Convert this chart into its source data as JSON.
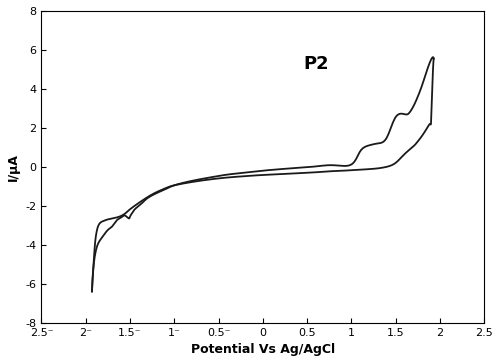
{
  "title": "P2",
  "xlabel": "Potential Vs Ag/AgCl",
  "ylabel": "I/μA",
  "xlim": [
    -2.5,
    2.5
  ],
  "ylim": [
    -8,
    8
  ],
  "xticks": [
    -2.5,
    -2,
    -1.5,
    -1,
    -0.5,
    0,
    0.5,
    1,
    1.5,
    2,
    2.5
  ],
  "yticks": [
    -8,
    -6,
    -4,
    -2,
    0,
    2,
    4,
    6,
    8
  ],
  "background_color": "#ffffff",
  "line_color": "#1a1a1a",
  "line_width": 1.3,
  "title_fontsize": 13,
  "label_fontsize": 9,
  "tick_fontsize": 8,
  "cv_forward": [
    [
      -1.93,
      -6.4
    ],
    [
      -1.91,
      -5.0
    ],
    [
      -1.88,
      -4.2
    ],
    [
      -1.85,
      -3.85
    ],
    [
      -1.82,
      -3.65
    ],
    [
      -1.78,
      -3.4
    ],
    [
      -1.74,
      -3.2
    ],
    [
      -1.7,
      -3.05
    ],
    [
      -1.65,
      -2.75
    ],
    [
      -1.6,
      -2.6
    ],
    [
      -1.57,
      -2.5
    ],
    [
      -1.55,
      -2.52
    ],
    [
      -1.53,
      -2.6
    ],
    [
      -1.51,
      -2.65
    ],
    [
      -1.5,
      -2.55
    ],
    [
      -1.48,
      -2.4
    ],
    [
      -1.45,
      -2.2
    ],
    [
      -1.4,
      -2.0
    ],
    [
      -1.35,
      -1.8
    ],
    [
      -1.3,
      -1.6
    ],
    [
      -1.2,
      -1.35
    ],
    [
      -1.1,
      -1.15
    ],
    [
      -1.0,
      -0.95
    ],
    [
      -0.8,
      -0.72
    ],
    [
      -0.6,
      -0.55
    ],
    [
      -0.4,
      -0.4
    ],
    [
      -0.2,
      -0.3
    ],
    [
      0.0,
      -0.2
    ],
    [
      0.2,
      -0.12
    ],
    [
      0.4,
      -0.05
    ],
    [
      0.6,
      0.02
    ],
    [
      0.8,
      0.08
    ],
    [
      1.0,
      0.12
    ],
    [
      1.1,
      0.8
    ],
    [
      1.2,
      1.1
    ],
    [
      1.3,
      1.2
    ],
    [
      1.4,
      1.5
    ],
    [
      1.5,
      2.55
    ],
    [
      1.6,
      2.7
    ],
    [
      1.65,
      2.75
    ],
    [
      1.7,
      3.1
    ],
    [
      1.75,
      3.6
    ],
    [
      1.8,
      4.2
    ],
    [
      1.85,
      4.9
    ],
    [
      1.9,
      5.5
    ],
    [
      1.93,
      5.55
    ]
  ],
  "cv_backward": [
    [
      1.93,
      5.55
    ],
    [
      1.92,
      4.8
    ],
    [
      1.91,
      3.5
    ],
    [
      1.9,
      2.3
    ],
    [
      1.89,
      2.2
    ],
    [
      1.87,
      2.1
    ],
    [
      1.85,
      1.95
    ],
    [
      1.8,
      1.6
    ],
    [
      1.75,
      1.3
    ],
    [
      1.7,
      1.05
    ],
    [
      1.6,
      0.65
    ],
    [
      1.5,
      0.2
    ],
    [
      1.4,
      0.0
    ],
    [
      1.3,
      -0.08
    ],
    [
      1.2,
      -0.12
    ],
    [
      1.1,
      -0.15
    ],
    [
      1.0,
      -0.18
    ],
    [
      0.8,
      -0.22
    ],
    [
      0.6,
      -0.28
    ],
    [
      0.4,
      -0.33
    ],
    [
      0.2,
      -0.38
    ],
    [
      0.0,
      -0.42
    ],
    [
      -0.2,
      -0.48
    ],
    [
      -0.4,
      -0.55
    ],
    [
      -0.6,
      -0.65
    ],
    [
      -0.8,
      -0.78
    ],
    [
      -1.0,
      -0.95
    ],
    [
      -1.1,
      -1.1
    ],
    [
      -1.2,
      -1.3
    ],
    [
      -1.3,
      -1.55
    ],
    [
      -1.4,
      -1.85
    ],
    [
      -1.5,
      -2.18
    ],
    [
      -1.55,
      -2.38
    ],
    [
      -1.6,
      -2.52
    ],
    [
      -1.65,
      -2.6
    ],
    [
      -1.7,
      -2.65
    ],
    [
      -1.75,
      -2.7
    ],
    [
      -1.8,
      -2.78
    ],
    [
      -1.85,
      -2.95
    ],
    [
      -1.88,
      -3.4
    ],
    [
      -1.9,
      -4.2
    ],
    [
      -1.93,
      -6.4
    ]
  ]
}
